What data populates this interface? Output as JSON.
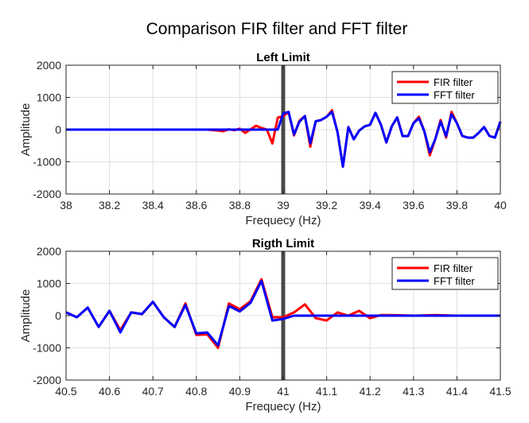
{
  "suptitle": "Comparison FIR filter and FFT filter",
  "chart_data": [
    {
      "type": "line",
      "title": "Left Limit",
      "xlabel": "Frequecy (Hz)",
      "ylabel": "Amplitude",
      "xlim": [
        38,
        40
      ],
      "ylim": [
        -2000,
        2000
      ],
      "xticks": [
        38,
        38.2,
        38.4,
        38.6,
        38.8,
        39,
        39.2,
        39.4,
        39.6,
        39.8,
        40
      ],
      "xtick_labels": [
        "38",
        "38.2",
        "38.4",
        "38.6",
        "38.8",
        "39",
        "39.2",
        "39.4",
        "39.6",
        "39.8",
        "40"
      ],
      "yticks": [
        -2000,
        -1000,
        0,
        1000,
        2000
      ],
      "ytick_labels": [
        "-2000",
        "-1000",
        "0",
        "1000",
        "2000"
      ],
      "grid": true,
      "legend_position": "top-right",
      "vline": 39,
      "series": [
        {
          "name": "FIR filter",
          "color": "#ff0000",
          "x": [
            38,
            38.5,
            38.65,
            38.7,
            38.725,
            38.75,
            38.775,
            38.8,
            38.825,
            38.85,
            38.875,
            38.9,
            38.925,
            38.95,
            38.975,
            39,
            39.025,
            39.05,
            39.075,
            39.1,
            39.125,
            39.15,
            39.175,
            39.2,
            39.225,
            39.25,
            39.275,
            39.3,
            39.325,
            39.35,
            39.375,
            39.4,
            39.425,
            39.45,
            39.475,
            39.5,
            39.525,
            39.55,
            39.575,
            39.6,
            39.625,
            39.65,
            39.675,
            39.7,
            39.725,
            39.75,
            39.775,
            39.8,
            39.825,
            39.85,
            39.875,
            39.9,
            39.925,
            39.95,
            39.975,
            40
          ],
          "y": [
            0,
            0,
            0,
            -30,
            -50,
            10,
            -20,
            30,
            -100,
            10,
            120,
            50,
            0,
            -430,
            370,
            420,
            540,
            -180,
            280,
            420,
            -530,
            260,
            300,
            400,
            600,
            -80,
            -1150,
            80,
            -300,
            -30,
            100,
            150,
            520,
            150,
            -400,
            100,
            380,
            -200,
            -200,
            200,
            400,
            -50,
            -800,
            -300,
            300,
            -250,
            550,
            200,
            -200,
            -250,
            -250,
            -100,
            80,
            -200,
            -250,
            250
          ]
        },
        {
          "name": "FFT filter",
          "color": "#0000ff",
          "x": [
            38,
            38.5,
            38.65,
            38.7,
            38.725,
            38.75,
            38.775,
            38.8,
            38.825,
            38.85,
            38.875,
            38.9,
            38.925,
            38.95,
            38.975,
            39,
            39.025,
            39.05,
            39.075,
            39.1,
            39.125,
            39.15,
            39.175,
            39.2,
            39.225,
            39.25,
            39.275,
            39.3,
            39.325,
            39.35,
            39.375,
            39.4,
            39.425,
            39.45,
            39.475,
            39.5,
            39.525,
            39.55,
            39.575,
            39.6,
            39.625,
            39.65,
            39.675,
            39.7,
            39.725,
            39.75,
            39.775,
            39.8,
            39.825,
            39.85,
            39.875,
            39.9,
            39.925,
            39.95,
            39.975,
            40
          ],
          "y": [
            0,
            0,
            0,
            0,
            0,
            0,
            0,
            0,
            0,
            0,
            0,
            0,
            0,
            0,
            0,
            500,
            550,
            -150,
            250,
            420,
            -430,
            260,
            300,
            400,
            550,
            -80,
            -1150,
            80,
            -300,
            -30,
            100,
            150,
            520,
            150,
            -400,
            100,
            380,
            -200,
            -200,
            200,
            350,
            -50,
            -700,
            -300,
            250,
            -200,
            480,
            200,
            -200,
            -250,
            -250,
            -100,
            80,
            -200,
            -250,
            250
          ]
        }
      ]
    },
    {
      "type": "line",
      "title": "Rigth Limit",
      "xlabel": "Frequecy (Hz)",
      "ylabel": "Amplitude",
      "xlim": [
        40.5,
        41.5
      ],
      "ylim": [
        -2000,
        2000
      ],
      "xticks": [
        40.5,
        40.6,
        40.7,
        40.8,
        40.9,
        41,
        41.1,
        41.2,
        41.3,
        41.4,
        41.5
      ],
      "xtick_labels": [
        "40.5",
        "40.6",
        "40.7",
        "40.8",
        "40.9",
        "41",
        "41.1",
        "41.2",
        "41.3",
        "41.4",
        "41.5"
      ],
      "yticks": [
        -2000,
        -1000,
        0,
        1000,
        2000
      ],
      "ytick_labels": [
        "-2000",
        "-1000",
        "0",
        "1000",
        "2000"
      ],
      "grid": true,
      "legend_position": "top-right",
      "vline": 41,
      "series": [
        {
          "name": "FIR filter",
          "color": "#ff0000",
          "x": [
            40.5,
            40.525,
            40.55,
            40.575,
            40.6,
            40.625,
            40.65,
            40.675,
            40.7,
            40.725,
            40.75,
            40.775,
            40.8,
            40.825,
            40.85,
            40.875,
            40.9,
            40.925,
            40.95,
            40.975,
            41,
            41.025,
            41.05,
            41.075,
            41.1,
            41.125,
            41.15,
            41.175,
            41.2,
            41.225,
            41.25,
            41.3,
            41.35,
            41.4,
            41.5
          ],
          "y": [
            100,
            -50,
            250,
            -350,
            150,
            -450,
            100,
            50,
            430,
            -50,
            -350,
            380,
            -600,
            -580,
            -1000,
            380,
            200,
            450,
            1130,
            -50,
            -50,
            100,
            350,
            -80,
            -150,
            100,
            0,
            150,
            -80,
            20,
            20,
            0,
            20,
            0,
            0
          ]
        },
        {
          "name": "FFT filter",
          "color": "#0000ff",
          "x": [
            40.5,
            40.525,
            40.55,
            40.575,
            40.6,
            40.625,
            40.65,
            40.675,
            40.7,
            40.725,
            40.75,
            40.775,
            40.8,
            40.825,
            40.85,
            40.875,
            40.9,
            40.925,
            40.95,
            40.975,
            41,
            41.025,
            41.05,
            41.1,
            41.2,
            41.3,
            41.4,
            41.5
          ],
          "y": [
            100,
            -50,
            250,
            -350,
            150,
            -520,
            100,
            50,
            430,
            -50,
            -350,
            330,
            -550,
            -520,
            -920,
            300,
            130,
            400,
            1080,
            -150,
            -100,
            0,
            0,
            0,
            0,
            0,
            0,
            0
          ]
        }
      ]
    }
  ]
}
